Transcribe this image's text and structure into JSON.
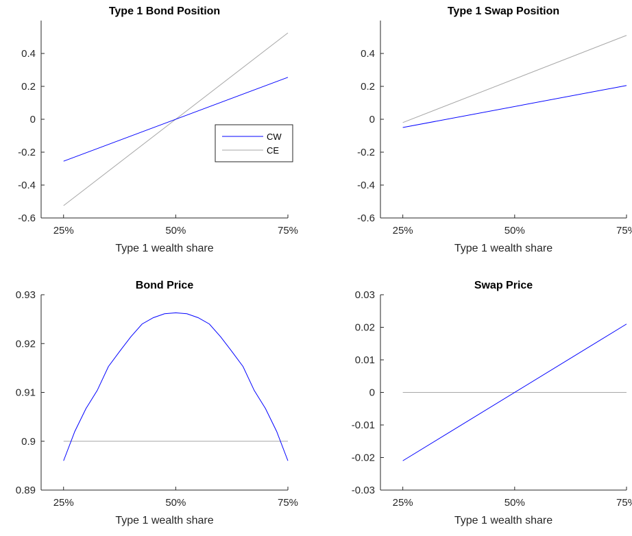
{
  "colors": {
    "cw": "#0000ff",
    "ce": "#a6a6a6",
    "axis": "#262626"
  },
  "chart_data": [
    {
      "type": "line",
      "title": "Type 1 Bond Position",
      "xlabel": "Type 1 wealth share",
      "ylabel": "",
      "x_ticks": [
        {
          "v": 0.25,
          "label": "25%"
        },
        {
          "v": 0.5,
          "label": "50%"
        },
        {
          "v": 0.75,
          "label": "75%"
        }
      ],
      "y_ticks": [
        {
          "v": -0.6,
          "label": "-0.6"
        },
        {
          "v": -0.4,
          "label": "-0.4"
        },
        {
          "v": -0.2,
          "label": "-0.2"
        },
        {
          "v": 0,
          "label": "0"
        },
        {
          "v": 0.2,
          "label": "0.2"
        },
        {
          "v": 0.4,
          "label": "0.4"
        }
      ],
      "xlim": [
        0.2,
        0.75
      ],
      "ylim": [
        -0.6,
        0.6
      ],
      "legend": {
        "placement": "center-right",
        "entries": [
          "CW",
          "CE"
        ]
      },
      "series": [
        {
          "name": "CW",
          "color_key": "cw",
          "x": [
            0.25,
            0.75
          ],
          "y": [
            -0.255,
            0.255
          ]
        },
        {
          "name": "CE",
          "color_key": "ce",
          "x": [
            0.25,
            0.75
          ],
          "y": [
            -0.525,
            0.525
          ]
        }
      ]
    },
    {
      "type": "line",
      "title": "Type 1 Swap Position",
      "xlabel": "Type 1 wealth share",
      "ylabel": "",
      "x_ticks": [
        {
          "v": 0.25,
          "label": "25%"
        },
        {
          "v": 0.5,
          "label": "50%"
        },
        {
          "v": 0.75,
          "label": "75%"
        }
      ],
      "y_ticks": [
        {
          "v": -0.6,
          "label": "-0.6"
        },
        {
          "v": -0.4,
          "label": "-0.4"
        },
        {
          "v": -0.2,
          "label": "-0.2"
        },
        {
          "v": 0,
          "label": "0"
        },
        {
          "v": 0.2,
          "label": "0.2"
        },
        {
          "v": 0.4,
          "label": "0.4"
        }
      ],
      "xlim": [
        0.2,
        0.75
      ],
      "ylim": [
        -0.6,
        0.6
      ],
      "series": [
        {
          "name": "CW",
          "color_key": "cw",
          "x": [
            0.25,
            0.75
          ],
          "y": [
            -0.05,
            0.205
          ]
        },
        {
          "name": "CE",
          "color_key": "ce",
          "x": [
            0.25,
            0.75
          ],
          "y": [
            -0.02,
            0.51
          ]
        }
      ]
    },
    {
      "type": "line",
      "title": "Bond Price",
      "xlabel": "Type 1 wealth share",
      "ylabel": "",
      "x_ticks": [
        {
          "v": 0.25,
          "label": "25%"
        },
        {
          "v": 0.5,
          "label": "50%"
        },
        {
          "v": 0.75,
          "label": "75%"
        }
      ],
      "y_ticks": [
        {
          "v": 0.89,
          "label": "0.89"
        },
        {
          "v": 0.9,
          "label": "0.9"
        },
        {
          "v": 0.91,
          "label": "0.91"
        },
        {
          "v": 0.92,
          "label": "0.92"
        },
        {
          "v": 0.93,
          "label": "0.93"
        }
      ],
      "xlim": [
        0.2,
        0.75
      ],
      "ylim": [
        0.89,
        0.93
      ],
      "series": [
        {
          "name": "CW",
          "color_key": "cw",
          "x": [
            0.25,
            0.275,
            0.3,
            0.325,
            0.35,
            0.375,
            0.4,
            0.425,
            0.45,
            0.475,
            0.5,
            0.525,
            0.55,
            0.575,
            0.6,
            0.625,
            0.65,
            0.675,
            0.7,
            0.725,
            0.75
          ],
          "y": [
            0.896,
            0.902,
            0.9067,
            0.9104,
            0.9153,
            0.9184,
            0.9214,
            0.924,
            0.9253,
            0.9261,
            0.9263,
            0.9261,
            0.9253,
            0.924,
            0.9214,
            0.9184,
            0.9153,
            0.9104,
            0.9067,
            0.902,
            0.896
          ]
        },
        {
          "name": "CE",
          "color_key": "ce",
          "x": [
            0.25,
            0.75
          ],
          "y": [
            0.9,
            0.9
          ]
        }
      ]
    },
    {
      "type": "line",
      "title": "Swap Price",
      "xlabel": "Type 1 wealth share",
      "ylabel": "",
      "x_ticks": [
        {
          "v": 0.25,
          "label": "25%"
        },
        {
          "v": 0.5,
          "label": "50%"
        },
        {
          "v": 0.75,
          "label": "75%"
        }
      ],
      "y_ticks": [
        {
          "v": -0.03,
          "label": "-0.03"
        },
        {
          "v": -0.02,
          "label": "-0.02"
        },
        {
          "v": -0.01,
          "label": "-0.01"
        },
        {
          "v": 0,
          "label": "0"
        },
        {
          "v": 0.01,
          "label": "0.01"
        },
        {
          "v": 0.02,
          "label": "0.02"
        },
        {
          "v": 0.03,
          "label": "0.03"
        }
      ],
      "xlim": [
        0.2,
        0.75
      ],
      "ylim": [
        -0.03,
        0.03
      ],
      "series": [
        {
          "name": "CW",
          "color_key": "cw",
          "x": [
            0.25,
            0.75
          ],
          "y": [
            -0.021,
            0.021
          ]
        },
        {
          "name": "CE",
          "color_key": "ce",
          "x": [
            0.25,
            0.75
          ],
          "y": [
            0,
            0
          ]
        }
      ]
    }
  ]
}
